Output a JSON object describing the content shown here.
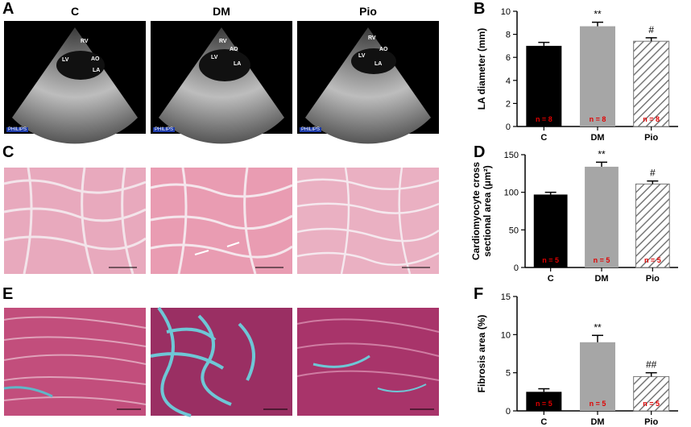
{
  "panel_letters": {
    "a": "A",
    "b": "B",
    "c": "C",
    "d": "D",
    "e": "E",
    "f": "F"
  },
  "column_labels": [
    "C",
    "DM",
    "Pio"
  ],
  "echo_labels": {
    "rv": "RV",
    "lv": "LV",
    "ao": "AO",
    "la": "LA",
    "brand": "PHILIPS"
  },
  "chart_data": [
    {
      "type": "bar",
      "panel": "B",
      "categories": [
        "C",
        "DM",
        "Pio"
      ],
      "values": [
        7.0,
        8.7,
        7.4
      ],
      "errors": [
        0.3,
        0.35,
        0.3
      ],
      "significance": [
        "",
        "**",
        "#"
      ],
      "n_labels": [
        "n = 8",
        "n = 8",
        "n = 8"
      ],
      "ylabel": "LA diameter (mm)",
      "ylim": [
        0,
        10
      ],
      "yticks": [
        0,
        2,
        4,
        6,
        8,
        10
      ],
      "bar_styles": [
        "black",
        "gray",
        "hatched"
      ]
    },
    {
      "type": "bar",
      "panel": "D",
      "categories": [
        "C",
        "DM",
        "Pio"
      ],
      "values": [
        97,
        134,
        111
      ],
      "errors": [
        3,
        6,
        4
      ],
      "significance": [
        "",
        "**",
        "#"
      ],
      "n_labels": [
        "n = 5",
        "n = 5",
        "n = 5"
      ],
      "ylabel": "Cardiomyocyte cross sectional area (μm²)",
      "ylabel_lines": [
        "Cardiomyocyte cross",
        "sectional area (μm²)"
      ],
      "ylim": [
        0,
        150
      ],
      "yticks": [
        0,
        50,
        100,
        150
      ],
      "bar_styles": [
        "black",
        "gray",
        "hatched"
      ]
    },
    {
      "type": "bar",
      "panel": "F",
      "categories": [
        "C",
        "DM",
        "Pio"
      ],
      "values": [
        2.5,
        9.0,
        4.5
      ],
      "errors": [
        0.4,
        0.9,
        0.5
      ],
      "significance": [
        "",
        "**",
        "##"
      ],
      "n_labels": [
        "n = 5",
        "n = 5",
        "n = 5"
      ],
      "ylabel": "Fibrosis area (%)",
      "ylim": [
        0,
        15
      ],
      "yticks": [
        0,
        5,
        10,
        15
      ],
      "bar_styles": [
        "black",
        "gray",
        "hatched"
      ]
    }
  ],
  "colors": {
    "bar_black": "#000000",
    "bar_gray": "#a6a6a6",
    "hatch": "#777777",
    "n_label": "#e00000"
  }
}
